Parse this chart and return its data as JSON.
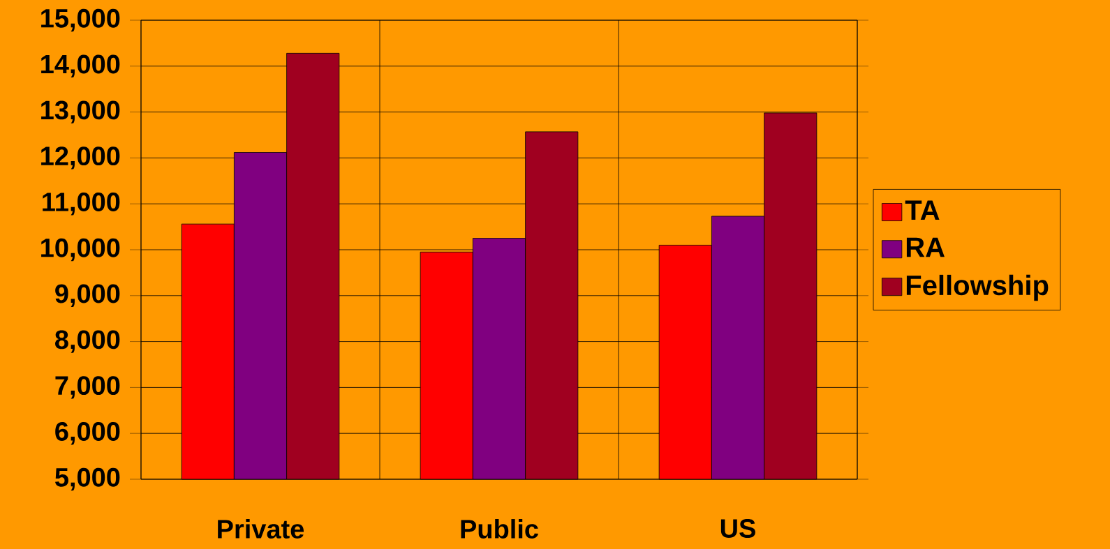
{
  "chart_data": {
    "type": "bar",
    "categories": [
      "Private",
      "Public",
      "US"
    ],
    "series": [
      {
        "name": "TA",
        "color": "#ff0000",
        "values": [
          10560,
          9950,
          10100
        ]
      },
      {
        "name": "RA",
        "color": "#800080",
        "values": [
          12120,
          10250,
          10730
        ]
      },
      {
        "name": "Fellowship",
        "color": "#a00020",
        "values": [
          14280,
          12570,
          12980
        ]
      }
    ],
    "ylim": [
      5000,
      15000
    ],
    "yticks": [
      {
        "value": 5000,
        "label": "5,000"
      },
      {
        "value": 6000,
        "label": "6,000"
      },
      {
        "value": 7000,
        "label": "7,000"
      },
      {
        "value": 8000,
        "label": "8,000"
      },
      {
        "value": 9000,
        "label": "9,000"
      },
      {
        "value": 10000,
        "label": "10,000"
      },
      {
        "value": 11000,
        "label": "11,000"
      },
      {
        "value": 12000,
        "label": "12,000"
      },
      {
        "value": 13000,
        "label": "13,000"
      },
      {
        "value": 14000,
        "label": "14,000"
      },
      {
        "value": 15000,
        "label": "15,000"
      }
    ],
    "grid": true,
    "legend": "right"
  }
}
